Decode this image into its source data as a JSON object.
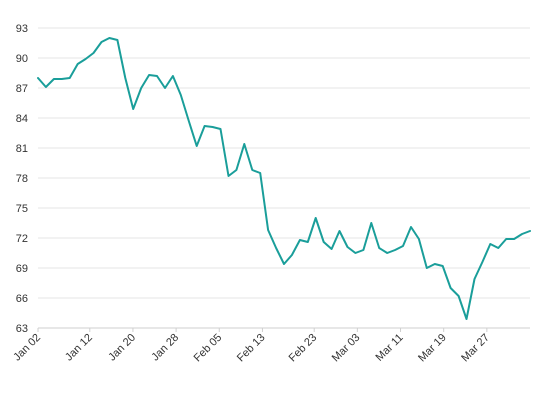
{
  "chart_data": {
    "type": "line",
    "title": "",
    "xlabel": "",
    "ylabel": "",
    "ylim": [
      63,
      93
    ],
    "y_ticks": [
      63,
      66,
      69,
      72,
      75,
      78,
      81,
      84,
      87,
      90,
      93
    ],
    "x_tick_labels": [
      "Jan 02",
      "Jan 12",
      "Jan 20",
      "Jan 28",
      "Feb 05",
      "Feb 13",
      "Feb 23",
      "Mar 03",
      "Mar 11",
      "Mar 19",
      "Mar 27"
    ],
    "grid": true,
    "legend": "none",
    "colors": {
      "series": "#1a9e9a",
      "grid": "#e6e6e6",
      "text": "#333333"
    },
    "series": [
      {
        "values": [
          88.0,
          87.1,
          87.9,
          87.9,
          88.0,
          89.4,
          89.9,
          90.5,
          91.6,
          92.0,
          91.8,
          88.0,
          84.9,
          87.0,
          88.3,
          88.2,
          87.0,
          88.2,
          86.3,
          83.7,
          81.2,
          83.2,
          83.1,
          82.9,
          78.2,
          78.8,
          81.4,
          78.8,
          78.5,
          72.8,
          71.0,
          69.4,
          70.3,
          71.8,
          71.6,
          74.0,
          71.6,
          70.9,
          72.7,
          71.1,
          70.5,
          70.8,
          73.5,
          71.0,
          70.5,
          70.8,
          71.2,
          73.1,
          71.9,
          69.0,
          69.4,
          69.2,
          67.0,
          66.2,
          63.9,
          67.9,
          69.6,
          71.4,
          71.0,
          71.9,
          71.9,
          72.4,
          72.7
        ]
      }
    ]
  }
}
